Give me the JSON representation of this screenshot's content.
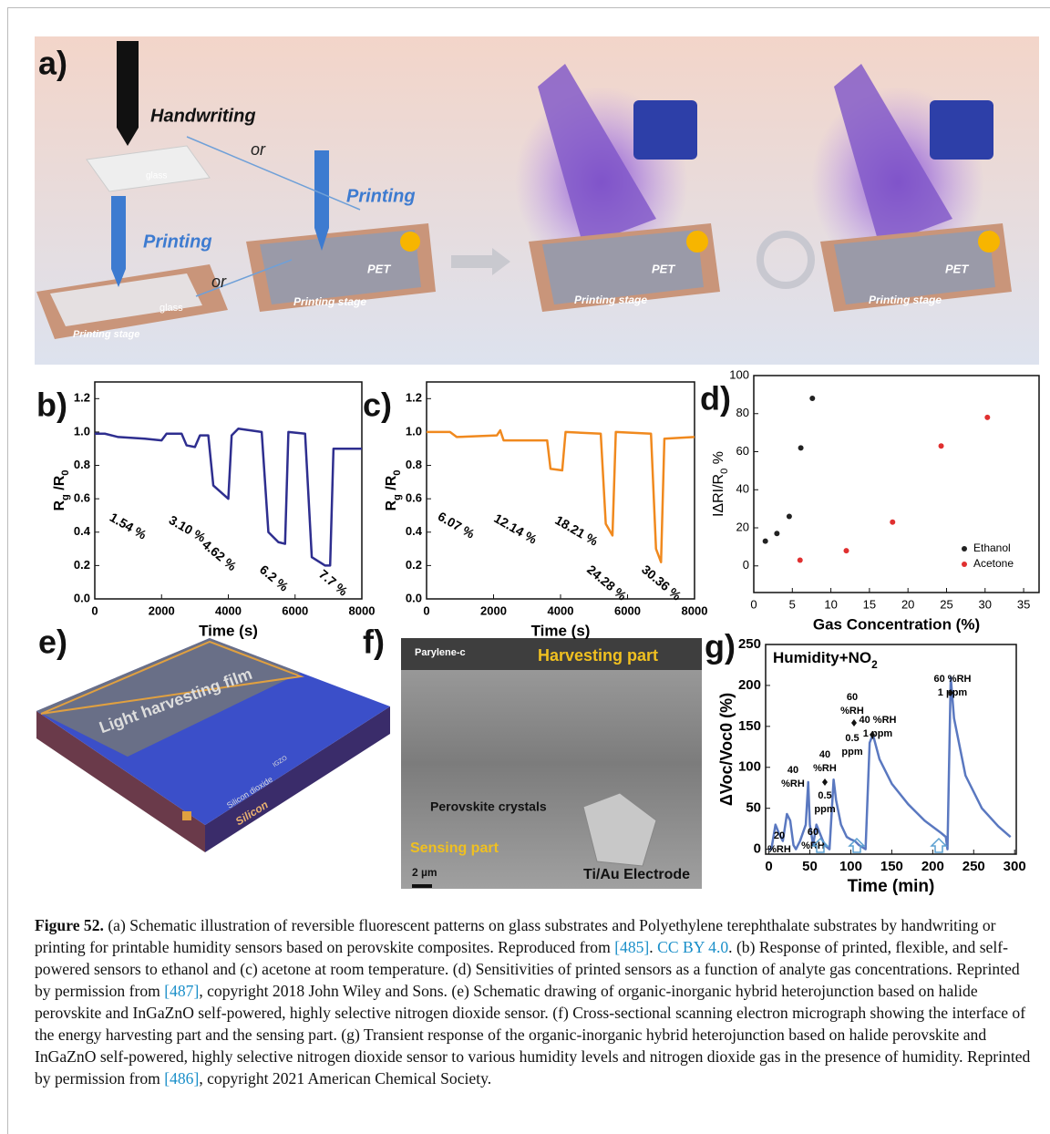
{
  "panels": {
    "labels": [
      "a)",
      "b)",
      "c)",
      "d)",
      "e)",
      "f)",
      "g)"
    ],
    "a": {
      "texts": [
        "Handwriting",
        "or",
        "glass",
        "Printing",
        "Printing",
        "or",
        "glass",
        "Printing stage",
        "PET",
        "Printing stage",
        "PET",
        "Printing stage",
        "PET",
        "Printing stage"
      ]
    },
    "e": {
      "texts": [
        "Light harvesting film",
        "IGZO",
        "Silicon dioxide",
        "Silicon"
      ]
    },
    "f": {
      "texts": [
        "Parylene-c",
        "Harvesting part",
        "Perovskite crystals",
        "Sensing part",
        "Ti/Au Electrode",
        "2 µm"
      ]
    }
  },
  "chart_data": [
    {
      "type": "line",
      "xlabel": "Time (s)",
      "ylabel": [
        "R",
        "g",
        " /R",
        "0"
      ],
      "color": "#2e2e8f",
      "x": [
        0,
        300,
        700,
        1500,
        2000,
        2150,
        2600,
        2750,
        3000,
        3150,
        3400,
        3550,
        4000,
        4100,
        4300,
        5000,
        5200,
        5500,
        5700,
        5800,
        6300,
        6500,
        6900,
        7050,
        7150,
        8000
      ],
      "values": [
        0.99,
        0.99,
        0.97,
        0.96,
        0.95,
        0.99,
        0.99,
        0.92,
        0.91,
        0.98,
        0.98,
        0.68,
        0.6,
        0.98,
        1.02,
        1.0,
        0.4,
        0.34,
        0.33,
        1.0,
        0.99,
        0.25,
        0.2,
        0.2,
        0.9,
        0.9
      ],
      "annotations": [
        "1.54 %",
        "3.10 %",
        "4.62 %",
        "6.2 %",
        "7.7 %"
      ],
      "xlim": [
        0,
        8000
      ],
      "xticks": [
        0,
        2000,
        4000,
        6000,
        8000
      ],
      "ylim": [
        0,
        1.3
      ],
      "yticks": [
        {
          "value": 0,
          "label": "0.0"
        },
        0.2,
        0.4,
        0.6,
        0.8,
        {
          "value": 1,
          "label": "1.0"
        },
        1.2
      ]
    },
    {
      "type": "line",
      "xlabel": "Time (s)",
      "ylabel": [
        "R",
        "g",
        " /R",
        "0"
      ],
      "color": "#f0891e",
      "x": [
        0,
        700,
        900,
        2100,
        2200,
        2300,
        3600,
        3700,
        4050,
        4150,
        5200,
        5350,
        5550,
        5650,
        6700,
        6850,
        7000,
        7100,
        8000
      ],
      "values": [
        1.0,
        1.0,
        0.97,
        0.98,
        1.01,
        0.95,
        0.95,
        0.78,
        0.77,
        1.0,
        0.99,
        0.45,
        0.38,
        1.0,
        0.99,
        0.3,
        0.22,
        0.96,
        0.97
      ],
      "annotations": [
        "6.07 %",
        "12.14 %",
        "18.21 %",
        "24.28 %",
        "30.36 %"
      ],
      "xlim": [
        0,
        8000
      ],
      "xticks": [
        0,
        2000,
        4000,
        6000,
        8000
      ],
      "ylim": [
        0,
        1.3
      ],
      "yticks": [
        {
          "value": 0,
          "label": "0.0"
        },
        0.2,
        0.4,
        0.6,
        0.8,
        {
          "value": 1,
          "label": "1.0"
        },
        1.2
      ]
    },
    {
      "type": "scatter",
      "xlabel": "Gas Concentration (%)",
      "ylabel": [
        "IΔRI/R",
        "0",
        " %"
      ],
      "legend": "lower right",
      "series": [
        {
          "name": "Ethanol",
          "color": "#222222",
          "x": [
            1.5,
            3,
            4.6,
            6.1,
            7.6
          ],
          "values": [
            13,
            17,
            26,
            62,
            88
          ]
        },
        {
          "name": "Acetone",
          "color": "#e03030",
          "x": [
            6,
            12,
            18,
            24.3,
            30.3
          ],
          "values": [
            3,
            8,
            23,
            63,
            78
          ]
        }
      ],
      "xlim": [
        0,
        37
      ],
      "xticks": [
        0,
        5,
        10,
        15,
        20,
        25,
        30,
        35
      ],
      "ylim": [
        -14,
        100
      ],
      "yticks": [
        0,
        20,
        40,
        60,
        80,
        100
      ]
    },
    {
      "type": "line",
      "title": [
        "Humidity+NO",
        "2"
      ],
      "xlabel": "Time (min)",
      "ylabel": "ΔVoc/Voc0 (%)",
      "color": "#5a78c0",
      "x": [
        0,
        3,
        8,
        12,
        17,
        22,
        26,
        30,
        33,
        38,
        45,
        48,
        50,
        54,
        58,
        62,
        68,
        74,
        79,
        82,
        88,
        95,
        100,
        105,
        110,
        118,
        123,
        127,
        135,
        150,
        170,
        190,
        210,
        216,
        218,
        222,
        226,
        240,
        260,
        280,
        295
      ],
      "values": [
        0,
        0,
        30,
        20,
        10,
        43,
        35,
        5,
        0,
        10,
        30,
        82,
        30,
        5,
        30,
        20,
        5,
        0,
        85,
        60,
        30,
        15,
        12,
        10,
        5,
        0,
        130,
        140,
        110,
        80,
        55,
        35,
        20,
        15,
        0,
        210,
        160,
        90,
        50,
        28,
        15
      ],
      "annotations": [
        [
          "20",
          "%RH"
        ],
        [
          "60",
          "%RH"
        ],
        [
          "40",
          "%RH"
        ],
        [
          "40",
          "%RH",
          "0.5",
          "ppm"
        ],
        [
          "60",
          "%RH",
          "0.5",
          "ppm"
        ],
        [
          "40 %RH",
          "1 ppm"
        ],
        [
          "60 %RH",
          "1 ppm"
        ]
      ],
      "xlim": [
        -4,
        302
      ],
      "xticks": [
        0,
        50,
        100,
        150,
        200,
        250,
        300
      ],
      "ylim": [
        -6,
        250
      ],
      "yticks": [
        0,
        50,
        100,
        150,
        200,
        250
      ]
    }
  ],
  "caption": [
    {
      "text": "Figure 52.",
      "bold": true
    },
    {
      "text": " (a) Schematic illustration of reversible fluorescent patterns on glass substrates and Polyethylene terephthalate substrates by handwriting or printing for printable humidity sensors based on perovskite composites. Reproduced from "
    },
    {
      "text": "[485]",
      "link": true
    },
    {
      "text": ". "
    },
    {
      "text": "CC BY 4.0",
      "link": true
    },
    {
      "text": ". (b) Response of printed, flexible, and self-powered sensors to ethanol and (c) acetone at room temperature. (d) Sensitivities of printed sensors as a function of analyte gas concentrations. Reprinted by permission from "
    },
    {
      "text": "[487]",
      "link": true
    },
    {
      "text": ", copyright 2018 John Wiley and Sons. (e) Schematic drawing of organic-inorganic hybrid heterojunction based on halide perovskite and InGaZnO self-powered, highly selective nitrogen dioxide sensor. (f) Cross-sectional scanning electron micrograph showing the interface of the energy harvesting part and the sensing part. (g) Transient response of the organic-inorganic hybrid heterojunction based on halide perovskite and InGaZnO self-powered, highly selective nitrogen dioxide sensor to various humidity levels and nitrogen dioxide gas in the presence of humidity. Reprinted by permission from "
    },
    {
      "text": "[486]",
      "link": true
    },
    {
      "text": ", copyright 2021 American Chemical Society."
    }
  ]
}
